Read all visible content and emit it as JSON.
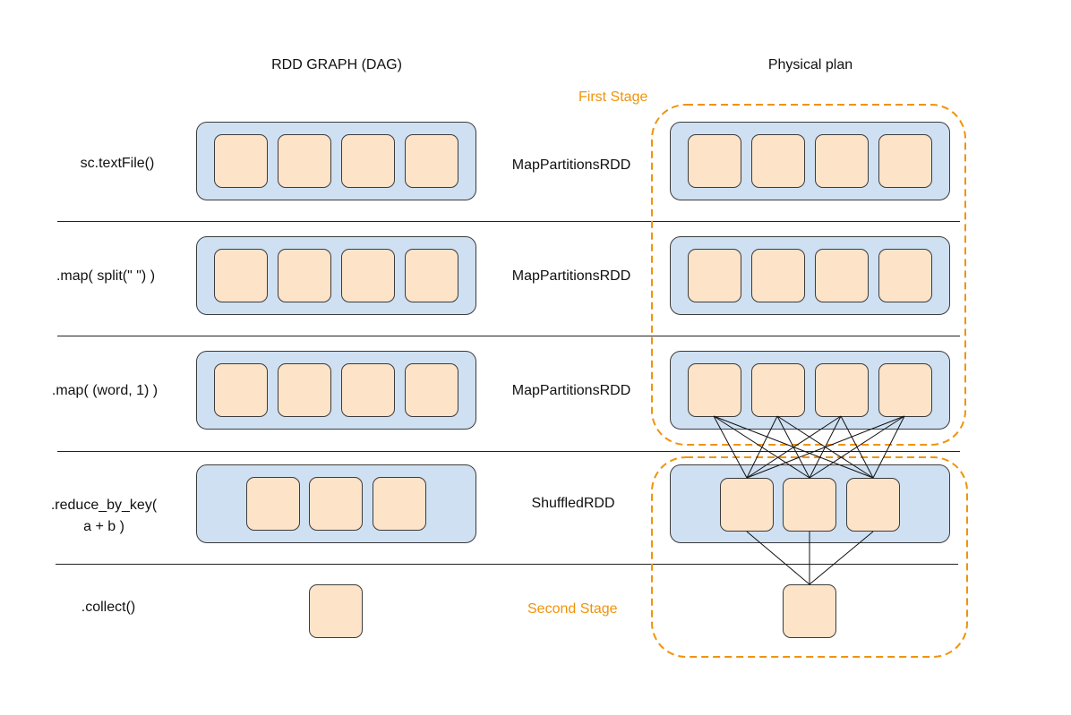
{
  "headers": {
    "left": "RDD GRAPH (DAG)",
    "right": "Physical plan"
  },
  "stages": {
    "first": "First Stage",
    "second": "Second Stage"
  },
  "rows": [
    {
      "operation": ".collect()",
      "rdd_type": "",
      "partitions": 1
    },
    {
      "operation": "sc.textFile()",
      "rdd_type": "MapPartitionsRDD",
      "partitions": 4
    },
    {
      "operation": ".map( split(\" \") )",
      "rdd_type": "MapPartitionsRDD",
      "partitions": 4
    },
    {
      "operation": ".map( (word, 1) )",
      "rdd_type": "MapPartitionsRDD",
      "partitions": 4
    },
    {
      "operation_line1": ".reduce_by_key(",
      "operation_line2": "a + b )",
      "rdd_type": "ShuffledRDD",
      "partitions": 3
    }
  ],
  "colors": {
    "rdd_fill": "#cfe0f2",
    "partition_fill": "#fde3c8",
    "stage_border": "#f0930b",
    "outline": "#3c3c3c"
  }
}
